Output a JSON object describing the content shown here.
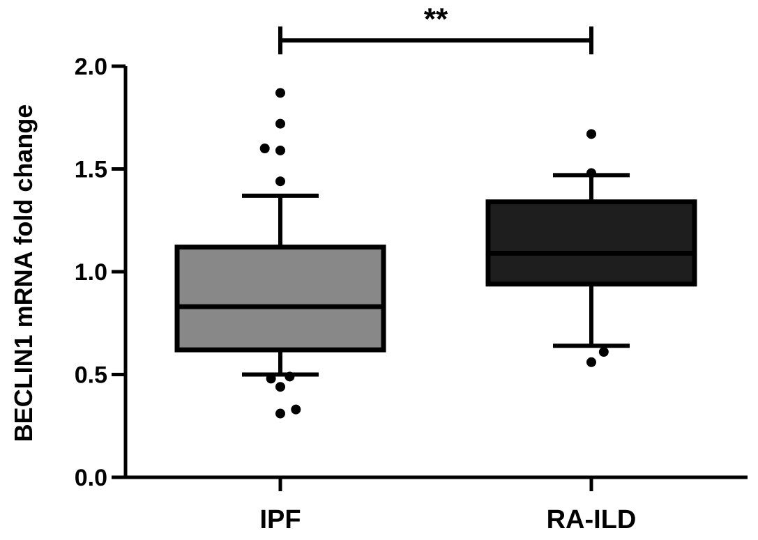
{
  "chart_data": {
    "type": "box",
    "title": "",
    "xlabel": "",
    "ylabel": "BECLIN1 mRNA fold change",
    "ylim": [
      0,
      2.0
    ],
    "yticks": [
      0.0,
      0.5,
      1.0,
      1.5,
      2.0
    ],
    "ytick_labels": [
      "0.0",
      "0.5",
      "1.0",
      "1.5",
      "2.0"
    ],
    "categories": [
      "IPF",
      "RA-ILD"
    ],
    "grid": false,
    "series": [
      {
        "category": "IPF",
        "fill": "#888888",
        "whisker_low": 0.5,
        "q1": 0.62,
        "median": 0.83,
        "q3": 1.12,
        "whisker_high": 1.37,
        "outliers": [
          {
            "x": 0,
            "y": 1.87
          },
          {
            "x": 0,
            "y": 1.72
          },
          {
            "x": -0.05,
            "y": 1.6
          },
          {
            "x": 0.0,
            "y": 1.59
          },
          {
            "x": 0,
            "y": 1.44
          },
          {
            "x": -0.03,
            "y": 0.48
          },
          {
            "x": 0.03,
            "y": 0.49
          },
          {
            "x": 0,
            "y": 0.44
          },
          {
            "x": 0,
            "y": 0.31
          },
          {
            "x": 0.05,
            "y": 0.33
          }
        ]
      },
      {
        "category": "RA-ILD",
        "fill": "#1e1e1e",
        "whisker_low": 0.64,
        "q1": 0.94,
        "median": 1.09,
        "q3": 1.34,
        "whisker_high": 1.47,
        "outliers": [
          {
            "x": 0,
            "y": 1.67
          },
          {
            "x": 0,
            "y": 1.48
          },
          {
            "x": 0,
            "y": 0.56
          },
          {
            "x": 0.04,
            "y": 0.61
          }
        ]
      }
    ],
    "significance": {
      "label": "**",
      "from": "IPF",
      "to": "RA-ILD"
    }
  }
}
